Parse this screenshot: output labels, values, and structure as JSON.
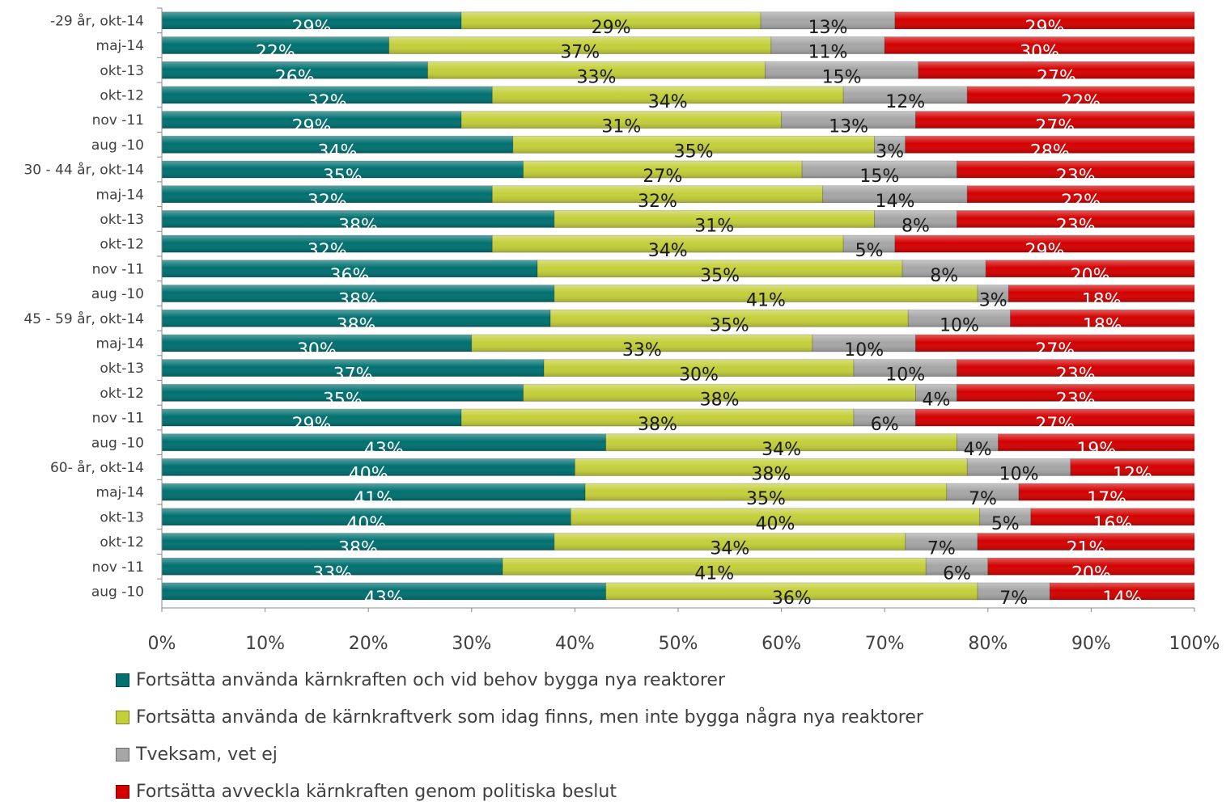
{
  "chart_data": {
    "type": "bar",
    "orientation": "horizontal",
    "stacked": "percent",
    "categories": [
      "-29 år, okt-14",
      "maj-14",
      "okt-13",
      "okt-12",
      "nov -11",
      "aug -10",
      "30 - 44 år, okt-14",
      "maj-14",
      "okt-13",
      "okt-12",
      "nov -11",
      "aug -10",
      "45 - 59 år, okt-14",
      "maj-14",
      "okt-13",
      "okt-12",
      "nov -11",
      "aug -10",
      "60- år, okt-14",
      "maj-14",
      "okt-13",
      "okt-12",
      "nov -11",
      "aug -10"
    ],
    "series": [
      {
        "name": "Fortsätta använda kärnkraften och vid behov bygga nya reaktorer",
        "color": "#007070",
        "labelColor": "#ffffff",
        "values": [
          29,
          22,
          26,
          32,
          29,
          34,
          35,
          32,
          38,
          32,
          36,
          38,
          38,
          30,
          37,
          35,
          29,
          43,
          40,
          41,
          40,
          38,
          33,
          43
        ]
      },
      {
        "name": "Fortsätta använda de kärnkraftverk som idag finns, men inte bygga några nya reaktorer",
        "color": "#c4cf3a",
        "labelColor": "#1a1a1a",
        "values": [
          29,
          37,
          33,
          34,
          31,
          35,
          27,
          32,
          31,
          34,
          35,
          41,
          35,
          33,
          30,
          38,
          38,
          34,
          38,
          35,
          40,
          34,
          41,
          36
        ]
      },
      {
        "name": "Tveksam, vet ej",
        "color": "#a6a6a6",
        "labelColor": "#1a1a1a",
        "values": [
          13,
          11,
          15,
          12,
          13,
          3,
          15,
          14,
          8,
          5,
          8,
          3,
          10,
          10,
          10,
          4,
          6,
          4,
          10,
          7,
          5,
          7,
          6,
          7
        ]
      },
      {
        "name": "Fortsätta avveckla kärnkraften genom politiska beslut",
        "color": "#d40000",
        "labelColor": "#ffffff",
        "values": [
          29,
          30,
          27,
          22,
          27,
          28,
          23,
          22,
          23,
          29,
          20,
          18,
          18,
          27,
          23,
          23,
          27,
          19,
          12,
          17,
          16,
          21,
          20,
          14
        ]
      }
    ],
    "xlim": [
      0,
      100
    ],
    "xticks": [
      "0%",
      "10%",
      "20%",
      "30%",
      "40%",
      "50%",
      "60%",
      "70%",
      "80%",
      "90%",
      "100%"
    ],
    "legend_position": "bottom",
    "grid": false
  }
}
